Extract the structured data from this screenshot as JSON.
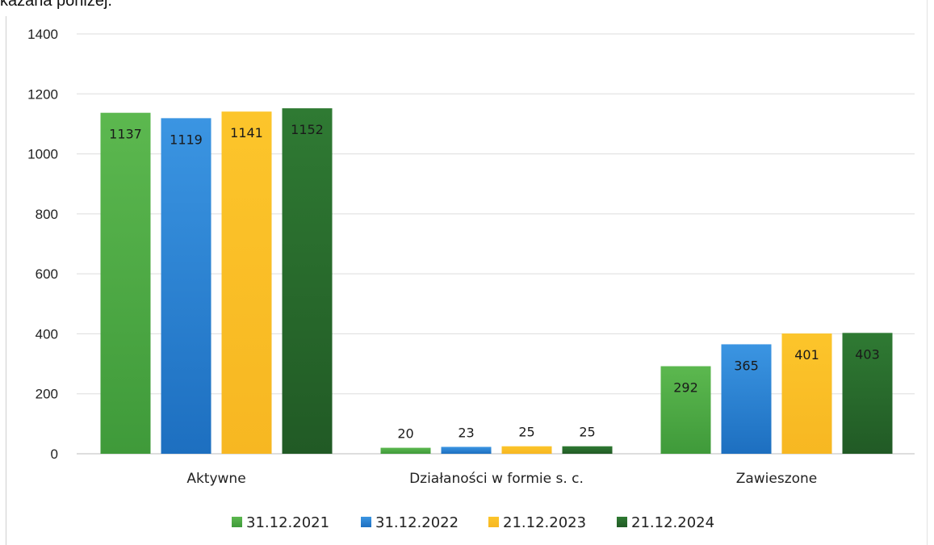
{
  "page": {
    "top_text": "kazana poniżej."
  },
  "chart_data": {
    "type": "bar",
    "categories": [
      "Aktywne",
      "Działaności w formie s. c.",
      "Zawieszone"
    ],
    "series": [
      {
        "name": "31.12.2021",
        "color": "#4aa844",
        "values": [
          1137,
          20,
          292
        ]
      },
      {
        "name": "31.12.2022",
        "color": "#2f86d6",
        "values": [
          1119,
          23,
          365
        ]
      },
      {
        "name": "21.12.2023",
        "color": "#fbc02d",
        "values": [
          1141,
          25,
          401
        ]
      },
      {
        "name": "21.12.2024",
        "color": "#2a6b2e",
        "values": [
          1152,
          25,
          403
        ]
      }
    ],
    "yticks": [
      "0",
      "200",
      "400",
      "600",
      "800",
      "1000",
      "1200",
      "1400"
    ],
    "ylim": [
      0,
      1400
    ],
    "grid": true,
    "legend": "bottom"
  }
}
